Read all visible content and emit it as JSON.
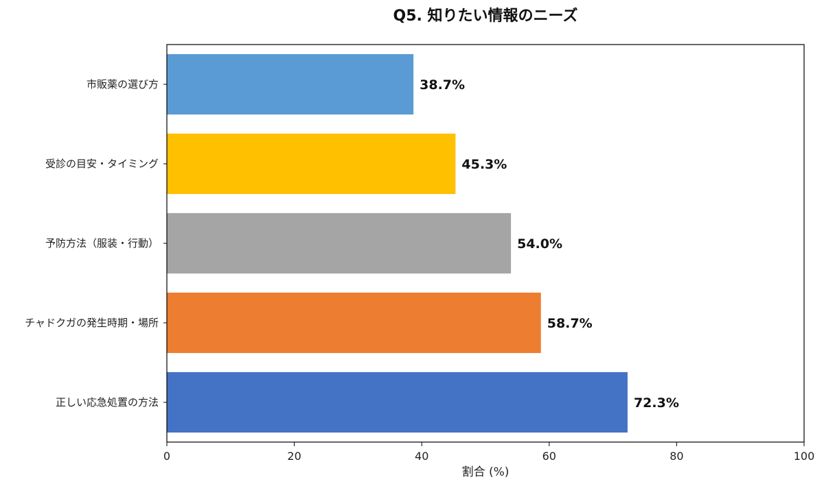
{
  "chart_data": {
    "type": "bar",
    "orientation": "horizontal",
    "title": "Q5. 知りたい情報のニーズ",
    "xlabel": "割合 (%)",
    "ylabel": "",
    "xlim": [
      0,
      100
    ],
    "xticks": [
      0,
      20,
      40,
      60,
      80,
      100
    ],
    "grid": false,
    "categories": [
      "市販薬の選び方",
      "受診の目安・タイミング",
      "予防方法（服装・行動）",
      "チャドクガの発生時期・場所",
      "正しい応急処置の方法"
    ],
    "values": [
      38.7,
      45.3,
      54.0,
      58.7,
      72.3
    ],
    "value_labels": [
      "38.7%",
      "45.3%",
      "54.0%",
      "58.7%",
      "72.3%"
    ],
    "colors": [
      "#5B9BD5",
      "#FFC000",
      "#A5A5A5",
      "#ED7D31",
      "#4472C4"
    ]
  }
}
